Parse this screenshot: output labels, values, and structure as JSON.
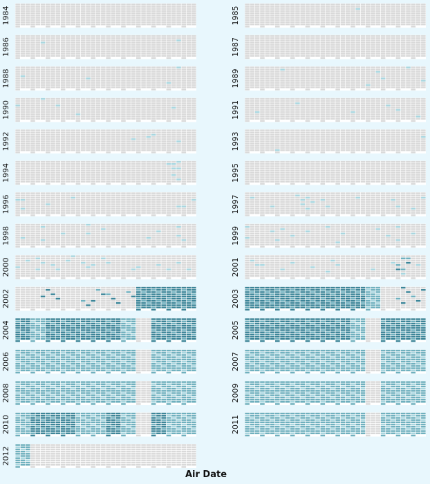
{
  "chart_data": {
    "type": "heatmap",
    "title": "",
    "xlabel": "Air Date",
    "ylabel": "",
    "years": [
      "1984",
      "1985",
      "1986",
      "1987",
      "1988",
      "1989",
      "1990",
      "1991",
      "1992",
      "1993",
      "1994",
      "1995",
      "1996",
      "1997",
      "1998",
      "1999",
      "2000",
      "2001",
      "2002",
      "2003",
      "2004",
      "2005",
      "2006",
      "2007",
      "2008",
      "2009",
      "2010",
      "2011",
      "2012"
    ],
    "months": 12,
    "days_per_month": 31,
    "scale": {
      "min": 0,
      "max": 4
    },
    "colors": {
      "empty": "#d9d9d9",
      "cell_bg": "#ffffff",
      "levels": [
        "#a8d6df",
        "#6fb0be",
        "#3c8598",
        "#235f6f"
      ]
    },
    "active_days": {
      "1985": [
        [
          7,
          8,
          1
        ]
      ],
      "1986": [
        [
          1,
          12,
          1
        ],
        [
          10,
          9,
          1
        ]
      ],
      "1988": [
        [
          0,
          14,
          1
        ],
        [
          4,
          18,
          1
        ],
        [
          10,
          3,
          1
        ],
        [
          10,
          22,
          1
        ]
      ],
      "1989": [
        [
          2,
          5,
          1
        ],
        [
          8,
          9,
          1
        ],
        [
          9,
          16,
          1
        ],
        [
          10,
          3,
          1
        ],
        [
          11,
          21,
          1
        ],
        [
          8,
          25,
          1
        ]
      ],
      "1990": [
        [
          0,
          10,
          1
        ],
        [
          1,
          3,
          1
        ],
        [
          2,
          12,
          1
        ],
        [
          4,
          22,
          1
        ],
        [
          10,
          14,
          1
        ]
      ],
      "1991": [
        [
          0,
          21,
          1
        ],
        [
          3,
          8,
          1
        ],
        [
          7,
          19,
          1
        ],
        [
          9,
          11,
          1
        ],
        [
          10,
          16,
          1
        ],
        [
          11,
          26,
          1
        ]
      ],
      "1992": [
        [
          7,
          15,
          1
        ],
        [
          8,
          12,
          1
        ],
        [
          9,
          7,
          1
        ],
        [
          10,
          18,
          1
        ]
      ],
      "1993": [
        [
          2,
          28,
          1
        ],
        [
          11,
          12,
          1
        ]
      ],
      "1994": [
        [
          10,
          3,
          1
        ],
        [
          10,
          4,
          1
        ],
        [
          10,
          5,
          1
        ],
        [
          10,
          11,
          1
        ],
        [
          10,
          12,
          1
        ],
        [
          10,
          20,
          1
        ],
        [
          10,
          27,
          1
        ]
      ],
      "1996": [
        [
          0,
          10,
          1
        ],
        [
          0,
          11,
          1
        ],
        [
          0,
          23,
          1
        ],
        [
          2,
          16,
          1
        ],
        [
          3,
          9,
          1
        ],
        [
          10,
          21,
          1
        ],
        [
          11,
          12,
          1
        ],
        [
          11,
          19,
          1
        ]
      ],
      "1997": [
        [
          0,
          8,
          1
        ],
        [
          1,
          21,
          1
        ],
        [
          3,
          5,
          1
        ],
        [
          3,
          12,
          1
        ],
        [
          3,
          18,
          1
        ],
        [
          4,
          7,
          1
        ],
        [
          4,
          14,
          1
        ],
        [
          4,
          22,
          1
        ],
        [
          5,
          10,
          1
        ],
        [
          5,
          20,
          1
        ],
        [
          7,
          8,
          1
        ],
        [
          9,
          12,
          1
        ],
        [
          10,
          19,
          1
        ],
        [
          11,
          9,
          1
        ],
        [
          11,
          22,
          1
        ]
      ],
      "1998": [
        [
          0,
          20,
          1
        ],
        [
          1,
          6,
          1
        ],
        [
          1,
          24,
          1
        ],
        [
          3,
          13,
          1
        ],
        [
          4,
          3,
          1
        ],
        [
          4,
          15,
          1
        ],
        [
          5,
          9,
          1
        ],
        [
          8,
          21,
          1
        ],
        [
          9,
          11,
          1
        ],
        [
          10,
          6,
          1
        ],
        [
          10,
          18,
          1
        ],
        [
          11,
          22,
          1
        ]
      ],
      "1999": [
        [
          0,
          4,
          1
        ],
        [
          0,
          19,
          1
        ],
        [
          1,
          12,
          1
        ],
        [
          2,
          8,
          1
        ],
        [
          2,
          22,
          1
        ],
        [
          3,
          16,
          1
        ],
        [
          4,
          10,
          1
        ],
        [
          5,
          5,
          1
        ],
        [
          6,
          14,
          1
        ],
        [
          6,
          25,
          1
        ],
        [
          8,
          9,
          1
        ],
        [
          9,
          17,
          1
        ],
        [
          10,
          4,
          1
        ],
        [
          10,
          22,
          1
        ],
        [
          11,
          13,
          1
        ]
      ],
      "2000": [
        [
          0,
          9,
          1
        ],
        [
          0,
          16,
          1
        ],
        [
          1,
          5,
          1
        ],
        [
          1,
          12,
          1
        ],
        [
          1,
          20,
          1
        ],
        [
          2,
          14,
          1
        ],
        [
          2,
          21,
          1
        ],
        [
          3,
          3,
          1
        ],
        [
          3,
          8,
          1
        ],
        [
          4,
          11,
          1
        ],
        [
          4,
          18,
          1
        ],
        [
          5,
          6,
          1
        ],
        [
          5,
          13,
          1
        ],
        [
          6,
          10,
          1
        ],
        [
          7,
          21,
          1
        ],
        [
          8,
          16,
          1
        ],
        [
          9,
          14,
          1
        ],
        [
          10,
          12,
          1
        ],
        [
          10,
          19,
          1
        ],
        [
          11,
          20,
          1
        ]
      ],
      "2001": [
        [
          0,
          8,
          1
        ],
        [
          0,
          15,
          1
        ],
        [
          1,
          13,
          1
        ],
        [
          2,
          20,
          1
        ],
        [
          3,
          10,
          1
        ],
        [
          4,
          17,
          1
        ],
        [
          5,
          9,
          1
        ],
        [
          5,
          23,
          1
        ],
        [
          6,
          13,
          1
        ],
        [
          8,
          20,
          1
        ],
        [
          9,
          12,
          1
        ],
        [
          10,
          5,
          2
        ],
        [
          10,
          6,
          2
        ],
        [
          10,
          12,
          3
        ],
        [
          10,
          13,
          2
        ],
        [
          10,
          19,
          3
        ],
        [
          10,
          20,
          2
        ],
        [
          10,
          26,
          1
        ],
        [
          11,
          14,
          1
        ]
      ],
      "2002": [
        [
          1,
          15,
          3
        ],
        [
          2,
          4,
          3
        ],
        [
          2,
          11,
          3
        ],
        [
          2,
          18,
          3
        ],
        [
          4,
          20,
          2
        ],
        [
          4,
          27,
          3
        ],
        [
          5,
          5,
          2
        ],
        [
          5,
          12,
          3
        ],
        [
          5,
          19,
          3
        ],
        [
          6,
          10,
          2
        ],
        [
          6,
          17,
          3
        ],
        [
          6,
          24,
          3
        ],
        [
          7,
          8,
          2
        ],
        [
          7,
          15,
          3
        ]
      ],
      "2003": [
        [
          10,
          2,
          3
        ],
        [
          10,
          9,
          3
        ],
        [
          10,
          16,
          2
        ],
        [
          10,
          23,
          3
        ],
        [
          11,
          6,
          3
        ],
        [
          11,
          13,
          2
        ],
        [
          11,
          20,
          3
        ]
      ]
    },
    "full_months": {
      "2002": [
        [
          8,
          3
        ],
        [
          9,
          3
        ],
        [
          10,
          3
        ],
        [
          11,
          3
        ]
      ],
      "2003": [
        [
          0,
          3
        ],
        [
          1,
          3
        ],
        [
          2,
          3
        ],
        [
          3,
          3
        ],
        [
          4,
          3
        ],
        [
          5,
          3
        ],
        [
          6,
          3
        ],
        [
          7,
          3
        ],
        [
          8,
          2
        ]
      ],
      "2004": [
        [
          0,
          3
        ],
        [
          1,
          2
        ],
        [
          2,
          3
        ],
        [
          3,
          3
        ],
        [
          4,
          3
        ],
        [
          5,
          3
        ],
        [
          6,
          3
        ],
        [
          7,
          2
        ],
        [
          9,
          3
        ],
        [
          10,
          3
        ],
        [
          11,
          3
        ]
      ],
      "2005": [
        [
          0,
          3
        ],
        [
          1,
          3
        ],
        [
          2,
          3
        ],
        [
          3,
          3
        ],
        [
          4,
          3
        ],
        [
          5,
          3
        ],
        [
          6,
          3
        ],
        [
          7,
          2
        ],
        [
          9,
          3
        ],
        [
          10,
          3
        ],
        [
          11,
          3
        ]
      ],
      "2006": [
        [
          0,
          2
        ],
        [
          1,
          2
        ],
        [
          2,
          2
        ],
        [
          3,
          2
        ],
        [
          4,
          2
        ],
        [
          5,
          2
        ],
        [
          6,
          2
        ],
        [
          7,
          2
        ],
        [
          9,
          2
        ],
        [
          10,
          2
        ],
        [
          11,
          2
        ]
      ],
      "2007": [
        [
          0,
          2
        ],
        [
          1,
          2
        ],
        [
          2,
          2
        ],
        [
          3,
          2
        ],
        [
          4,
          2
        ],
        [
          5,
          2
        ],
        [
          6,
          2
        ],
        [
          7,
          2
        ],
        [
          9,
          2
        ],
        [
          10,
          2
        ],
        [
          11,
          2
        ]
      ],
      "2008": [
        [
          0,
          2
        ],
        [
          1,
          2
        ],
        [
          2,
          2
        ],
        [
          3,
          2
        ],
        [
          4,
          2
        ],
        [
          5,
          2
        ],
        [
          6,
          2
        ],
        [
          7,
          2
        ],
        [
          9,
          2
        ],
        [
          10,
          2
        ],
        [
          11,
          2
        ]
      ],
      "2009": [
        [
          0,
          2
        ],
        [
          1,
          2
        ],
        [
          2,
          2
        ],
        [
          3,
          2
        ],
        [
          4,
          2
        ],
        [
          5,
          2
        ],
        [
          6,
          2
        ],
        [
          7,
          2
        ],
        [
          9,
          2
        ],
        [
          10,
          2
        ],
        [
          11,
          2
        ]
      ],
      "2010": [
        [
          0,
          2
        ],
        [
          1,
          3
        ],
        [
          2,
          3
        ],
        [
          3,
          3
        ],
        [
          4,
          2
        ],
        [
          5,
          2
        ],
        [
          6,
          3
        ],
        [
          7,
          2
        ],
        [
          9,
          3
        ],
        [
          10,
          2
        ],
        [
          11,
          2
        ]
      ],
      "2011": [
        [
          0,
          2
        ],
        [
          1,
          2
        ],
        [
          2,
          2
        ],
        [
          3,
          2
        ],
        [
          4,
          2
        ],
        [
          5,
          2
        ],
        [
          6,
          2
        ],
        [
          7,
          2
        ],
        [
          9,
          2
        ],
        [
          10,
          2
        ],
        [
          11,
          2
        ]
      ],
      "2012": [
        [
          0,
          2
        ]
      ]
    }
  }
}
